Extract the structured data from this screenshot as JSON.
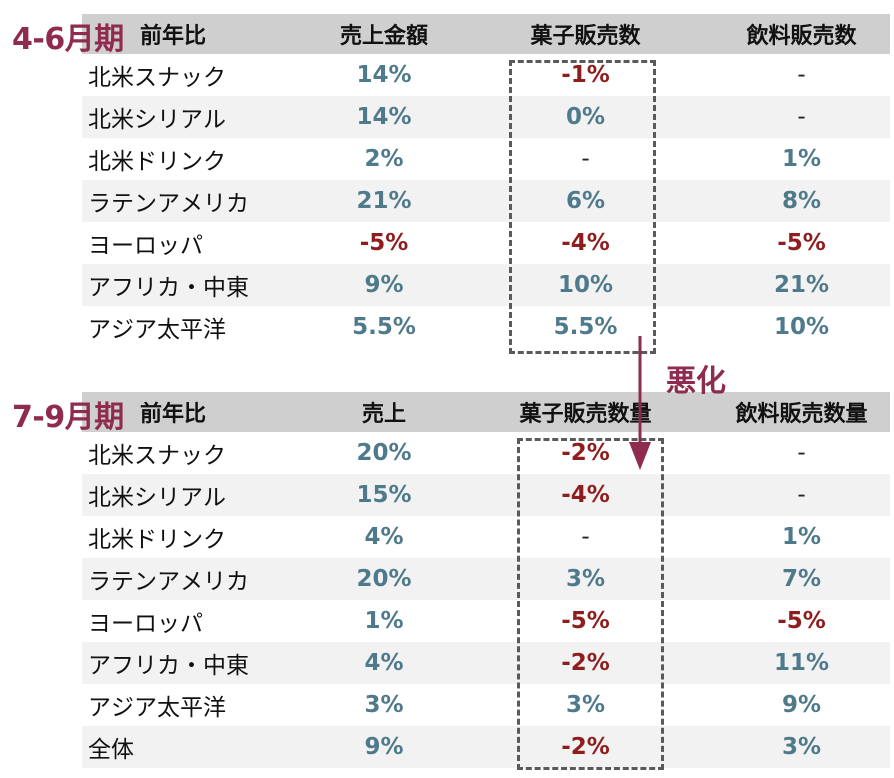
{
  "annotation": "悪化",
  "colors": {
    "accent": "#8e2b4e",
    "positive": "#4f7a8c",
    "negative": "#8f1d1d"
  },
  "sections": [
    {
      "period": "4-6月期",
      "headers": [
        "前年比",
        "売上金額",
        "菓子販売数",
        "飲料販売数"
      ],
      "rows": [
        [
          "北米スナック",
          "14%",
          "-1%",
          "-"
        ],
        [
          "北米シリアル",
          "14%",
          "0%",
          "-"
        ],
        [
          "北米ドリンク",
          "2%",
          "-",
          "1%"
        ],
        [
          "ラテンアメリカ",
          "21%",
          "6%",
          "8%"
        ],
        [
          "ヨーロッパ",
          "-5%",
          "-4%",
          "-5%"
        ],
        [
          "アフリカ・中東",
          "9%",
          "10%",
          "21%"
        ],
        [
          "アジア太平洋",
          "5.5%",
          "5.5%",
          "10%"
        ]
      ]
    },
    {
      "period": "7-9月期",
      "headers": [
        "前年比",
        "売上",
        "菓子販売数量",
        "飲料販売数量"
      ],
      "rows": [
        [
          "北米スナック",
          "20%",
          "-2%",
          "-"
        ],
        [
          "北米シリアル",
          "15%",
          "-4%",
          "-"
        ],
        [
          "北米ドリンク",
          "4%",
          "-",
          "1%"
        ],
        [
          "ラテンアメリカ",
          "20%",
          "3%",
          "7%"
        ],
        [
          "ヨーロッパ",
          "1%",
          "-5%",
          "-5%"
        ],
        [
          "アフリカ・中東",
          "4%",
          "-2%",
          "11%"
        ],
        [
          "アジア太平洋",
          "3%",
          "3%",
          "9%"
        ],
        [
          "全体",
          "9%",
          "-2%",
          "3%"
        ]
      ]
    }
  ]
}
